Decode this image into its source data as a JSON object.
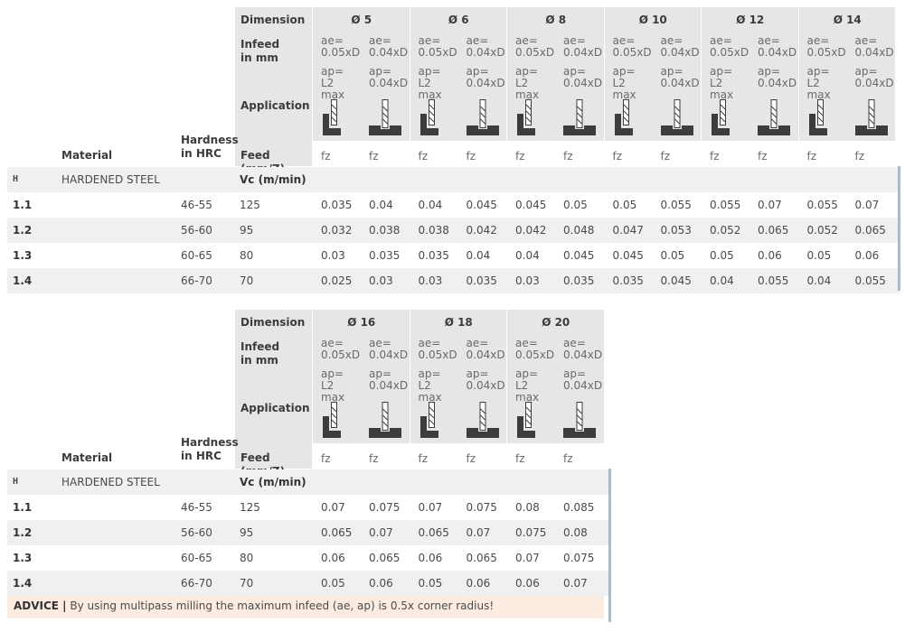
{
  "tables": [
    {
      "labels": {
        "dimension": "Dimension",
        "infeed": "Infeed\nin mm",
        "application": "Application",
        "material": "Material",
        "hardness": "Hardness\nin HRC",
        "feed": "Feed (mm/Z)",
        "vc": "Vc (m/min)"
      },
      "diameters": [
        "Ø 5",
        "Ø 6",
        "Ø 8",
        "Ø 10",
        "Ø 12",
        "Ø 14"
      ],
      "infeed_cols": [
        {
          "ae": "ae=\n0.05xD",
          "ap": "ap=\nL2 max"
        },
        {
          "ae": "ae=\n0.04xD",
          "ap": "ap=\n0.04xD"
        }
      ],
      "application_icons": [
        "side-milling-icon",
        "slot-milling-icon"
      ],
      "feed_unit": "fz",
      "group": {
        "code": "H",
        "name": "HARDENED STEEL"
      },
      "rows": [
        {
          "id": "1.1",
          "hardness": "46-55",
          "vc": "125",
          "fz": [
            "0.035",
            "0.04",
            "0.04",
            "0.045",
            "0.045",
            "0.05",
            "0.05",
            "0.055",
            "0.055",
            "0.07",
            "0.055",
            "0.07"
          ]
        },
        {
          "id": "1.2",
          "hardness": "56-60",
          "vc": "95",
          "fz": [
            "0.032",
            "0.038",
            "0.038",
            "0.042",
            "0.042",
            "0.048",
            "0.047",
            "0.053",
            "0.052",
            "0.065",
            "0.052",
            "0.065"
          ]
        },
        {
          "id": "1.3",
          "hardness": "60-65",
          "vc": "80",
          "fz": [
            "0.03",
            "0.035",
            "0.035",
            "0.04",
            "0.04",
            "0.045",
            "0.045",
            "0.05",
            "0.05",
            "0.06",
            "0.05",
            "0.06"
          ]
        },
        {
          "id": "1.4",
          "hardness": "66-70",
          "vc": "70",
          "fz": [
            "0.025",
            "0.03",
            "0.03",
            "0.035",
            "0.03",
            "0.035",
            "0.035",
            "0.045",
            "0.04",
            "0.055",
            "0.04",
            "0.055"
          ]
        }
      ]
    },
    {
      "labels": {
        "dimension": "Dimension",
        "infeed": "Infeed\nin mm",
        "application": "Application",
        "material": "Material",
        "hardness": "Hardness\nin HRC",
        "feed": "Feed (mm/Z)",
        "vc": "Vc (m/min)"
      },
      "diameters": [
        "Ø 16",
        "Ø 18",
        "Ø 20"
      ],
      "infeed_cols": [
        {
          "ae": "ae=\n0.05xD",
          "ap": "ap=\nL2 max"
        },
        {
          "ae": "ae=\n0.04xD",
          "ap": "ap=\n0.04xD"
        }
      ],
      "application_icons": [
        "side-milling-icon",
        "slot-milling-icon"
      ],
      "feed_unit": "fz",
      "group": {
        "code": "H",
        "name": "HARDENED STEEL"
      },
      "rows": [
        {
          "id": "1.1",
          "hardness": "46-55",
          "vc": "125",
          "fz": [
            "0.07",
            "0.075",
            "0.07",
            "0.075",
            "0.08",
            "0.085"
          ]
        },
        {
          "id": "1.2",
          "hardness": "56-60",
          "vc": "95",
          "fz": [
            "0.065",
            "0.07",
            "0.065",
            "0.07",
            "0.075",
            "0.08"
          ]
        },
        {
          "id": "1.3",
          "hardness": "60-65",
          "vc": "80",
          "fz": [
            "0.06",
            "0.065",
            "0.06",
            "0.065",
            "0.07",
            "0.075"
          ]
        },
        {
          "id": "1.4",
          "hardness": "66-70",
          "vc": "70",
          "fz": [
            "0.05",
            "0.06",
            "0.05",
            "0.06",
            "0.06",
            "0.07"
          ]
        }
      ]
    }
  ],
  "advice": {
    "title": "ADVICE |",
    "text": " By using multipass milling the maximum infeed (ae, ap) is 0.5x corner radius!"
  },
  "colors": {
    "header_bg": "#e5e6e7",
    "row_shade": "#eff0f1",
    "advice_bg": "#fcebe1",
    "accent_bar": "#aab9cc"
  }
}
